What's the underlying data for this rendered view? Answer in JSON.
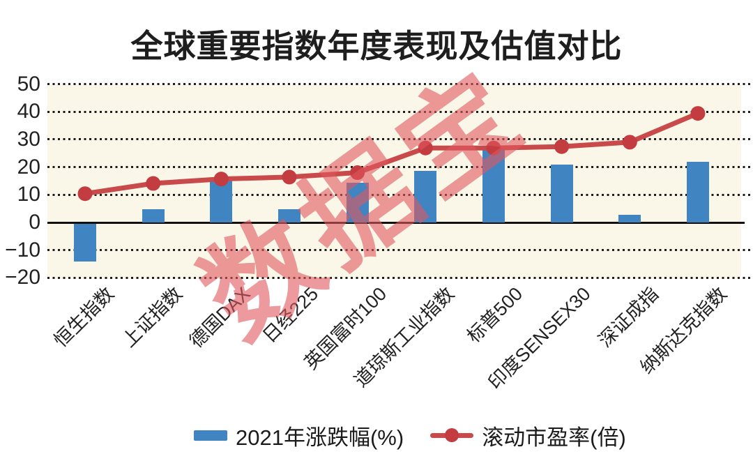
{
  "title": "全球重要指数年度表现及估值对比",
  "watermark": "数据宝",
  "legend": {
    "bar_label": "2021年涨跌幅(%)",
    "line_label": "滚动市盈率(倍)"
  },
  "colors": {
    "bar": "#4084c2",
    "line": "#c94a4a",
    "dot": "#c23c40",
    "plot_bg": "#faf7e8",
    "grid": "#1d1d1d",
    "zero_line": "#111111",
    "title_text": "#1e1e1e",
    "axis_text": "#222222",
    "watermark": "#e0585f"
  },
  "y_axis": {
    "ticks": [
      50,
      40,
      30,
      20,
      10,
      0,
      -10,
      -20
    ],
    "tick_labels": [
      "50",
      "40",
      "30",
      "20",
      "10",
      "0",
      "−10",
      "−20"
    ]
  },
  "chart_data": {
    "type": "bar+line combo",
    "title": "全球重要指数年度表现及估值对比",
    "categories": [
      "恒生指数",
      "上证指数",
      "德国DAX",
      "日经225",
      "英国富时100",
      "道琼斯工业指数",
      "标普500",
      "印度SENSEX30",
      "深证成指",
      "纳斯达克指数"
    ],
    "series": [
      {
        "name": "2021年涨跌幅(%)",
        "type": "bar",
        "values": [
          -14.1,
          4.8,
          15.8,
          4.9,
          14.3,
          18.7,
          26.9,
          21.0,
          2.7,
          22.0
        ]
      },
      {
        "name": "滚动市盈率(倍)",
        "type": "line",
        "values": [
          10.4,
          14.1,
          15.7,
          16.4,
          18.0,
          26.9,
          26.9,
          27.4,
          29.0,
          39.4
        ]
      }
    ],
    "ylim": [
      -20,
      50
    ],
    "grid": "horizontal dotted lines, solid zero line",
    "legend_position": "bottom center",
    "x_tick_rotation": 45
  }
}
